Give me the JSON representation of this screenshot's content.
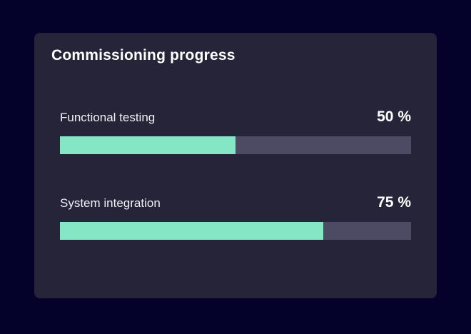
{
  "card": {
    "title": "Commissioning progress"
  },
  "chart_data": {
    "type": "bar",
    "orientation": "horizontal",
    "title": "Commissioning progress",
    "categories": [
      "Functional testing",
      "System integration"
    ],
    "values": [
      50,
      75
    ],
    "value_labels": [
      "50 %",
      "75 %"
    ],
    "xlim": [
      0,
      100
    ],
    "unit": "%",
    "grid": false,
    "legend": false
  },
  "rows": [
    {
      "label": "Functional testing",
      "value": 50,
      "value_label": "50 %"
    },
    {
      "label": "System integration",
      "value": 75,
      "value_label": "75 %"
    }
  ],
  "colors": {
    "page_bg": "#04012B",
    "card_bg": "#262439",
    "track": "#4C4B63",
    "fill": "#85E6C5",
    "title": "#FFFFFF",
    "label": "#F0F0F5",
    "value": "#FFFFFF"
  }
}
